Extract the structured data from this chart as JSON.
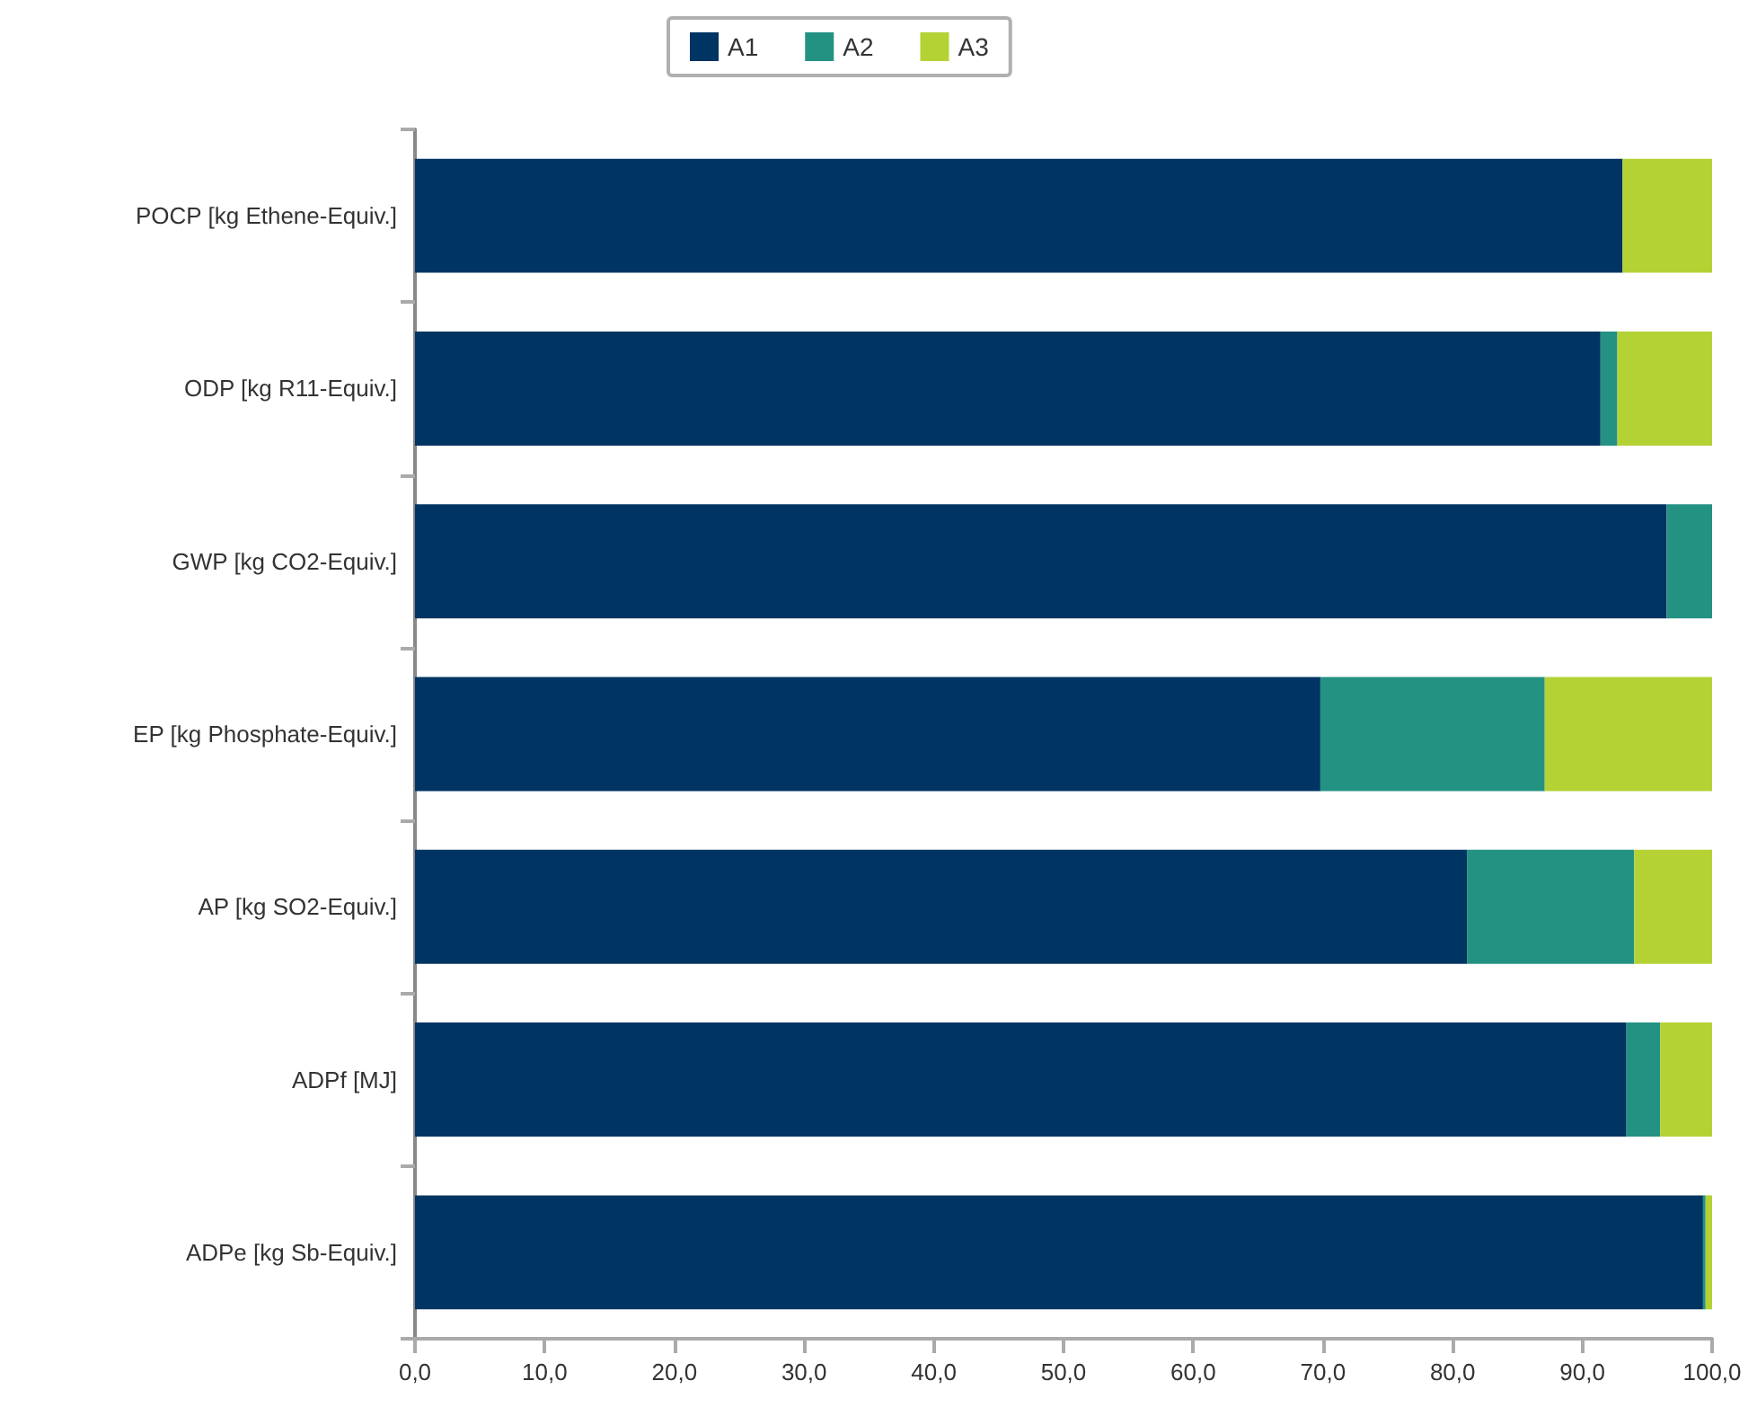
{
  "chart_data": {
    "type": "bar",
    "orientation": "horizontal",
    "stacked": true,
    "categories": [
      "POCP [kg Ethene-Equiv.]",
      "ODP [kg R11-Equiv.]",
      "GWP [kg CO2-Equiv.]",
      "EP [kg Phosphate-Equiv.]",
      "AP [kg SO2-Equiv.]",
      "ADPf [MJ]",
      "ADPe [kg Sb-Equiv.]"
    ],
    "series": [
      {
        "name": "A1",
        "color": "#003462",
        "values": [
          93.1,
          91.4,
          96.5,
          69.8,
          81.1,
          93.4,
          99.3
        ]
      },
      {
        "name": "A2",
        "color": "#239283",
        "values": [
          0,
          1.3,
          3.5,
          17.3,
          12.9,
          2.6,
          0.2
        ]
      },
      {
        "name": "A3",
        "color": "#b4d234",
        "values": [
          6.9,
          7.3,
          0,
          12.9,
          6.0,
          4.0,
          0.5
        ]
      }
    ],
    "xlim": [
      0,
      100
    ],
    "xticks": [
      {
        "value": 0,
        "label": "0,0"
      },
      {
        "value": 10,
        "label": "10,0"
      },
      {
        "value": 20,
        "label": "20,0"
      },
      {
        "value": 30,
        "label": "30,0"
      },
      {
        "value": 40,
        "label": "40,0"
      },
      {
        "value": 50,
        "label": "50,0"
      },
      {
        "value": 60,
        "label": "60,0"
      },
      {
        "value": 70,
        "label": "70,0"
      },
      {
        "value": 80,
        "label": "80,0"
      },
      {
        "value": 90,
        "label": "90,0"
      },
      {
        "value": 100,
        "label": "100,0"
      }
    ],
    "grid": false,
    "legend": "top"
  }
}
